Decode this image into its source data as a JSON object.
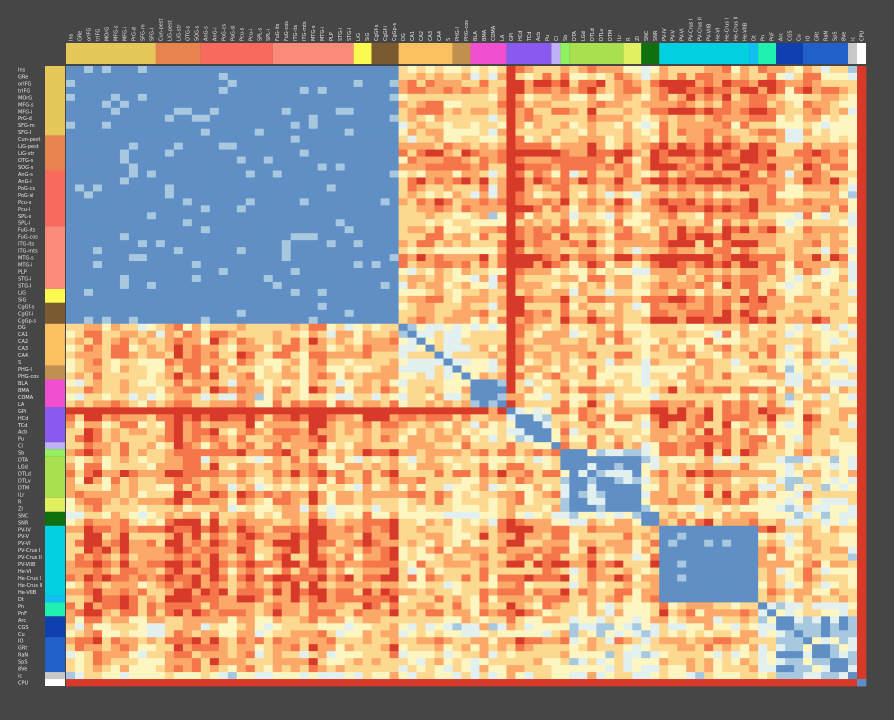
{
  "chart_data": {
    "type": "heatmap",
    "title": "",
    "labels": [
      "Ins",
      "GRe",
      "orIFG",
      "trIFG",
      "MOrG",
      "MFG-s",
      "MFG-i",
      "PrG-d",
      "SFG-m",
      "SFG-l",
      "Cun-pest",
      "LiG-pest",
      "LiG-str",
      "OTG-s",
      "SOG-s",
      "AnG-s",
      "AnG-i",
      "PoG-cs",
      "PoG-sl",
      "Pcu-s",
      "Pcu-i",
      "SPL-s",
      "SPL-i",
      "FuG-its",
      "FuG-cos",
      "ITG-its",
      "ITG-mts",
      "MTG-s",
      "MTG-i",
      "PLP",
      "STG-i",
      "STG-l",
      "LiG",
      "SiG",
      "CgGf-s",
      "CgGf-i",
      "CgGp-s",
      "DG",
      "CA1",
      "CA2",
      "CA3",
      "CA4",
      "S",
      "PHG-l",
      "PHG-cos",
      "BLA",
      "BMA",
      "COMA",
      "LA",
      "GPi",
      "HCd",
      "TCd",
      "Acb",
      "Pu",
      "Cl",
      "Sb",
      "DTA",
      "LGd",
      "DTLd",
      "DTLv",
      "DTM",
      "ILr",
      "R",
      "ZI",
      "SNC",
      "SNR",
      "PV-IV",
      "PV-V",
      "PV-VI",
      "PV-Crus I",
      "PV-Crus II",
      "PV-VIIB",
      "He-VI",
      "He-Crus I",
      "He-Crus II",
      "He-VIIB",
      "Dt",
      "Pn",
      "PnF",
      "Arc",
      "CGS",
      "Cu",
      "IO",
      "GRt",
      "RaN",
      "SpS",
      "8Ve",
      "ic",
      "CPU"
    ],
    "groups": [
      {
        "start": 0,
        "end": 9,
        "color": "#e6c85a"
      },
      {
        "start": 10,
        "end": 14,
        "color": "#e8834f"
      },
      {
        "start": 15,
        "end": 22,
        "color": "#f86a5e"
      },
      {
        "start": 23,
        "end": 31,
        "color": "#fb8a78"
      },
      {
        "start": 32,
        "end": 33,
        "color": "#fafa50"
      },
      {
        "start": 34,
        "end": 36,
        "color": "#7a5a30"
      },
      {
        "start": 37,
        "end": 42,
        "color": "#fbc060"
      },
      {
        "start": 43,
        "end": 44,
        "color": "#c09050"
      },
      {
        "start": 45,
        "end": 48,
        "color": "#f050d0"
      },
      {
        "start": 49,
        "end": 53,
        "color": "#8a5af0"
      },
      {
        "start": 54,
        "end": 54,
        "color": "#c0b0f8"
      },
      {
        "start": 55,
        "end": 55,
        "color": "#90f060"
      },
      {
        "start": 56,
        "end": 61,
        "color": "#a8e050"
      },
      {
        "start": 62,
        "end": 63,
        "color": "#e0f060"
      },
      {
        "start": 64,
        "end": 65,
        "color": "#107010"
      },
      {
        "start": 66,
        "end": 75,
        "color": "#00d0e0"
      },
      {
        "start": 76,
        "end": 76,
        "color": "#10c0f0"
      },
      {
        "start": 77,
        "end": 78,
        "color": "#20f0b0"
      },
      {
        "start": 79,
        "end": 81,
        "color": "#1040b0"
      },
      {
        "start": 82,
        "end": 86,
        "color": "#2060c8"
      },
      {
        "start": 87,
        "end": 87,
        "color": "#c8c8c8"
      },
      {
        "start": 88,
        "end": 88,
        "color": "#ffffff"
      }
    ],
    "colorscale": [
      "#d83a2a",
      "#f4764a",
      "#fba868",
      "#fdd890",
      "#fef6c0",
      "#e2f0f0",
      "#a8c8e0",
      "#5f8fc4"
    ],
    "block_ranges": [
      [
        0,
        36
      ],
      [
        37,
        44
      ],
      [
        45,
        48
      ],
      [
        49,
        49
      ],
      [
        50,
        53
      ],
      [
        54,
        54
      ],
      [
        55,
        63
      ],
      [
        64,
        65
      ],
      [
        66,
        76
      ],
      [
        77,
        78
      ],
      [
        79,
        86
      ],
      [
        87,
        87
      ],
      [
        88,
        88
      ]
    ],
    "block_levels": [
      [
        0.95,
        0.35,
        0.4,
        0.05,
        0.3,
        0.45,
        0.35,
        0.3,
        0.22,
        0.35,
        0.35,
        0.45,
        0.0
      ],
      [
        0.35,
        0.6,
        0.45,
        0.05,
        0.4,
        0.5,
        0.4,
        0.4,
        0.4,
        0.45,
        0.45,
        0.5,
        0.0
      ],
      [
        0.4,
        0.45,
        0.95,
        0.1,
        0.5,
        0.6,
        0.45,
        0.45,
        0.35,
        0.5,
        0.45,
        0.5,
        0.0
      ],
      [
        0.05,
        0.05,
        0.1,
        1.0,
        0.7,
        0.2,
        0.3,
        0.1,
        0.15,
        0.2,
        0.3,
        0.2,
        0.0
      ],
      [
        0.3,
        0.4,
        0.5,
        0.7,
        0.85,
        0.6,
        0.45,
        0.4,
        0.3,
        0.5,
        0.45,
        0.5,
        0.0
      ],
      [
        0.45,
        0.5,
        0.6,
        0.2,
        0.6,
        1.0,
        0.5,
        0.5,
        0.4,
        0.5,
        0.5,
        0.5,
        0.0
      ],
      [
        0.35,
        0.4,
        0.45,
        0.3,
        0.45,
        0.5,
        0.9,
        0.5,
        0.35,
        0.6,
        0.55,
        0.5,
        0.0
      ],
      [
        0.3,
        0.4,
        0.45,
        0.1,
        0.4,
        0.5,
        0.5,
        1.0,
        0.3,
        0.6,
        0.5,
        0.5,
        0.05
      ],
      [
        0.22,
        0.4,
        0.35,
        0.15,
        0.3,
        0.4,
        0.35,
        0.3,
        1.0,
        0.45,
        0.4,
        0.5,
        0.0
      ],
      [
        0.35,
        0.45,
        0.5,
        0.2,
        0.5,
        0.5,
        0.6,
        0.6,
        0.45,
        0.9,
        0.7,
        0.6,
        0.0
      ],
      [
        0.35,
        0.45,
        0.45,
        0.3,
        0.45,
        0.5,
        0.55,
        0.5,
        0.4,
        0.7,
        0.75,
        0.6,
        0.05
      ],
      [
        0.45,
        0.5,
        0.5,
        0.2,
        0.5,
        0.5,
        0.5,
        0.5,
        0.5,
        0.6,
        0.6,
        1.0,
        0.05
      ],
      [
        0.0,
        0.0,
        0.0,
        0.0,
        0.0,
        0.0,
        0.0,
        0.05,
        0.0,
        0.0,
        0.05,
        0.05,
        1.0
      ]
    ],
    "xlabel": "",
    "ylabel": "",
    "legend": "none"
  }
}
